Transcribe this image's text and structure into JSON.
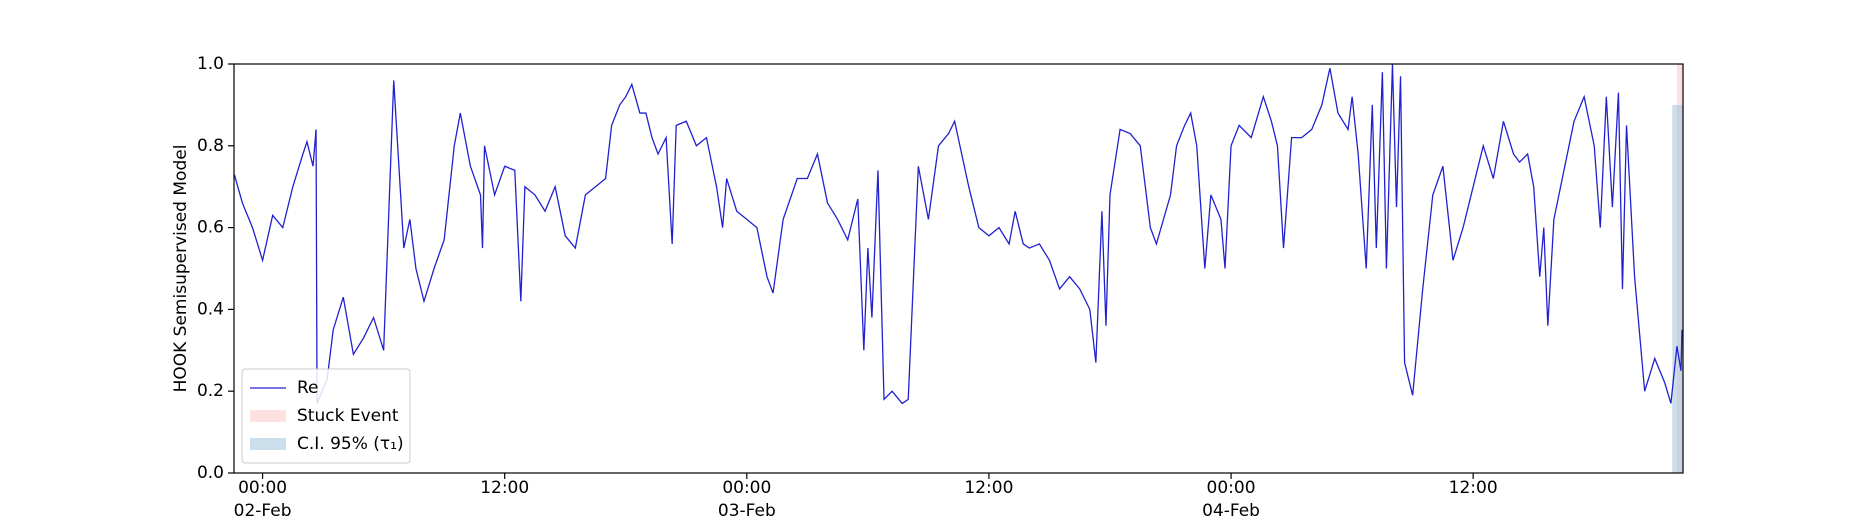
{
  "chart_data": {
    "type": "line",
    "y_label": "HOOK Semisupervised Model",
    "xlim": [
      "1900-02-01T22:35",
      "1900-02-04T22:24"
    ],
    "xticks": [
      {
        "value": "1900-02-02T00:00",
        "label": "00:00\n02-Feb\n1900"
      },
      {
        "value": "1900-02-02T12:00",
        "label": "12:00"
      },
      {
        "value": "1900-02-03T00:00",
        "label": "00:00\n03-Feb"
      },
      {
        "value": "1900-02-03T12:00",
        "label": "12:00"
      },
      {
        "value": "1900-02-04T00:00",
        "label": "00:00\n04-Feb"
      },
      {
        "value": "1900-02-04T12:00",
        "label": "12:00"
      }
    ],
    "ylim": [
      0,
      1
    ],
    "yticks": [
      {
        "value": 0,
        "label": "0.0"
      },
      0.2,
      0.4,
      0.6,
      0.8,
      {
        "value": 1,
        "label": "1.0"
      }
    ],
    "legend": "lower left",
    "x": [
      "1900-02-01T22:36",
      "1900-02-01T23:00",
      "1900-02-01T23:30",
      "1900-02-02T00:00",
      "1900-02-02T00:30",
      "1900-02-02T01:00",
      "1900-02-02T01:30",
      "1900-02-02T02:00",
      "1900-02-02T02:12",
      "1900-02-02T02:30",
      "1900-02-02T02:39",
      "1900-02-02T02:42",
      "1900-02-02T03:12",
      "1900-02-02T03:30",
      "1900-02-02T04:00",
      "1900-02-02T04:30",
      "1900-02-02T05:00",
      "1900-02-02T05:30",
      "1900-02-02T06:00",
      "1900-02-02T06:30",
      "1900-02-02T07:00",
      "1900-02-02T07:18",
      "1900-02-02T07:36",
      "1900-02-02T08:00",
      "1900-02-02T08:30",
      "1900-02-02T09:00",
      "1900-02-02T09:30",
      "1900-02-02T09:48",
      "1900-02-02T10:18",
      "1900-02-02T10:48",
      "1900-02-02T10:54",
      "1900-02-02T11:00",
      "1900-02-02T11:30",
      "1900-02-02T12:00",
      "1900-02-02T12:30",
      "1900-02-02T12:48",
      "1900-02-02T13:00",
      "1900-02-02T13:30",
      "1900-02-02T14:00",
      "1900-02-02T14:30",
      "1900-02-02T15:00",
      "1900-02-02T15:30",
      "1900-02-02T16:00",
      "1900-02-02T16:30",
      "1900-02-02T17:00",
      "1900-02-02T17:18",
      "1900-02-02T17:42",
      "1900-02-02T18:00",
      "1900-02-02T18:18",
      "1900-02-02T18:42",
      "1900-02-02T19:00",
      "1900-02-02T19:18",
      "1900-02-02T19:36",
      "1900-02-02T20:00",
      "1900-02-02T20:18",
      "1900-02-02T20:30",
      "1900-02-02T21:00",
      "1900-02-02T21:30",
      "1900-02-02T22:00",
      "1900-02-02T22:30",
      "1900-02-02T22:48",
      "1900-02-02T23:00",
      "1900-02-02T23:30",
      "1900-02-03T00:00",
      "1900-02-03T00:30",
      "1900-02-03T01:00",
      "1900-02-03T01:18",
      "1900-02-03T01:48",
      "1900-02-03T02:30",
      "1900-02-03T03:00",
      "1900-02-03T03:30",
      "1900-02-03T04:00",
      "1900-02-03T04:30",
      "1900-02-03T05:00",
      "1900-02-03T05:30",
      "1900-02-03T05:48",
      "1900-02-03T06:00",
      "1900-02-03T06:12",
      "1900-02-03T06:30",
      "1900-02-03T06:48",
      "1900-02-03T07:12",
      "1900-02-03T07:42",
      "1900-02-03T08:00",
      "1900-02-03T08:30",
      "1900-02-03T09:00",
      "1900-02-03T09:30",
      "1900-02-03T10:00",
      "1900-02-03T10:18",
      "1900-02-03T11:00",
      "1900-02-03T11:30",
      "1900-02-03T12:00",
      "1900-02-03T12:30",
      "1900-02-03T13:00",
      "1900-02-03T13:18",
      "1900-02-03T13:42",
      "1900-02-03T14:00",
      "1900-02-03T14:30",
      "1900-02-03T15:00",
      "1900-02-03T15:30",
      "1900-02-03T16:00",
      "1900-02-03T16:30",
      "1900-02-03T17:00",
      "1900-02-03T17:18",
      "1900-02-03T17:36",
      "1900-02-03T17:48",
      "1900-02-03T18:00",
      "1900-02-03T18:30",
      "1900-02-03T19:00",
      "1900-02-03T19:30",
      "1900-02-03T20:00",
      "1900-02-03T20:18",
      "1900-02-03T21:00",
      "1900-02-03T21:18",
      "1900-02-03T21:42",
      "1900-02-03T22:00",
      "1900-02-03T22:18",
      "1900-02-03T22:42",
      "1900-02-03T23:00",
      "1900-02-03T23:30",
      "1900-02-03T23:42",
      "1900-02-04T00:00",
      "1900-02-04T00:24",
      "1900-02-04T01:00",
      "1900-02-04T01:36",
      "1900-02-04T02:00",
      "1900-02-04T02:18",
      "1900-02-04T02:36",
      "1900-02-04T03:00",
      "1900-02-04T03:30",
      "1900-02-04T04:00",
      "1900-02-04T04:30",
      "1900-02-04T04:54",
      "1900-02-04T05:18",
      "1900-02-04T05:48",
      "1900-02-04T06:00",
      "1900-02-04T06:18",
      "1900-02-04T06:42",
      "1900-02-04T07:00",
      "1900-02-04T07:12",
      "1900-02-04T07:30",
      "1900-02-04T07:42",
      "1900-02-04T08:00",
      "1900-02-04T08:12",
      "1900-02-04T08:24",
      "1900-02-04T08:36",
      "1900-02-04T09:00",
      "1900-02-04T09:30",
      "1900-02-04T10:00",
      "1900-02-04T10:30",
      "1900-02-04T11:00",
      "1900-02-04T11:30",
      "1900-02-04T12:00",
      "1900-02-04T12:30",
      "1900-02-04T13:00",
      "1900-02-04T13:30",
      "1900-02-04T14:00",
      "1900-02-04T14:18",
      "1900-02-04T14:42",
      "1900-02-04T15:00",
      "1900-02-04T15:18",
      "1900-02-04T15:30",
      "1900-02-04T15:42",
      "1900-02-04T16:00",
      "1900-02-04T16:30",
      "1900-02-04T17:00",
      "1900-02-04T17:30",
      "1900-02-04T18:00",
      "1900-02-04T18:18",
      "1900-02-04T18:36",
      "1900-02-04T18:54",
      "1900-02-04T19:12",
      "1900-02-04T19:24",
      "1900-02-04T19:36",
      "1900-02-04T20:00",
      "1900-02-04T20:30",
      "1900-02-04T21:00",
      "1900-02-04T21:30",
      "1900-02-04T21:48",
      "1900-02-04T22:06",
      "1900-02-04T22:18",
      "1900-02-04T22:21"
    ],
    "series": [
      {
        "name": "Re",
        "color": "#2121d0",
        "values": [
          0.73,
          0.66,
          0.6,
          0.52,
          0.63,
          0.6,
          0.7,
          0.78,
          0.81,
          0.75,
          0.84,
          0.17,
          0.23,
          0.35,
          0.43,
          0.29,
          0.33,
          0.38,
          0.3,
          0.96,
          0.55,
          0.62,
          0.5,
          0.42,
          0.5,
          0.57,
          0.8,
          0.88,
          0.75,
          0.68,
          0.55,
          0.8,
          0.68,
          0.75,
          0.74,
          0.42,
          0.7,
          0.68,
          0.64,
          0.7,
          0.58,
          0.55,
          0.68,
          0.7,
          0.72,
          0.85,
          0.9,
          0.92,
          0.95,
          0.88,
          0.88,
          0.82,
          0.78,
          0.82,
          0.56,
          0.85,
          0.86,
          0.8,
          0.82,
          0.7,
          0.6,
          0.72,
          0.64,
          0.62,
          0.6,
          0.48,
          0.44,
          0.62,
          0.72,
          0.72,
          0.78,
          0.66,
          0.62,
          0.57,
          0.67,
          0.3,
          0.55,
          0.38,
          0.74,
          0.18,
          0.2,
          0.17,
          0.18,
          0.75,
          0.62,
          0.8,
          0.83,
          0.86,
          0.7,
          0.6,
          0.58,
          0.6,
          0.56,
          0.64,
          0.56,
          0.55,
          0.56,
          0.52,
          0.45,
          0.48,
          0.45,
          0.4,
          0.27,
          0.64,
          0.36,
          0.68,
          0.84,
          0.83,
          0.8,
          0.6,
          0.56,
          0.68,
          0.8,
          0.85,
          0.88,
          0.8,
          0.5,
          0.68,
          0.62,
          0.5,
          0.8,
          0.85,
          0.82,
          0.92,
          0.86,
          0.8,
          0.55,
          0.82,
          0.82,
          0.84,
          0.9,
          0.99,
          0.88,
          0.84,
          0.92,
          0.78,
          0.5,
          0.9,
          0.55,
          0.98,
          0.5,
          1.0,
          0.65,
          0.97,
          0.27,
          0.19,
          0.45,
          0.68,
          0.75,
          0.52,
          0.6,
          0.7,
          0.8,
          0.72,
          0.86,
          0.78,
          0.76,
          0.78,
          0.7,
          0.48,
          0.6,
          0.36,
          0.62,
          0.74,
          0.86,
          0.92,
          0.8,
          0.6,
          0.92,
          0.65,
          0.93,
          0.45,
          0.85,
          0.48,
          0.2,
          0.28,
          0.22,
          0.17,
          0.31,
          0.25,
          0.35
        ]
      }
    ],
    "spans": [
      {
        "name": "Stuck Event",
        "color": "#ffcccc",
        "x": [
          "1900-02-04T22:06",
          "1900-02-04T22:24"
        ],
        "y": [
          0,
          1
        ]
      },
      {
        "name": "C.I. 95% (τ₁)",
        "color": "#a8c8de",
        "x": [
          "1900-02-04T21:52",
          "1900-02-04T22:24"
        ],
        "y": [
          0,
          0.9
        ]
      }
    ]
  }
}
